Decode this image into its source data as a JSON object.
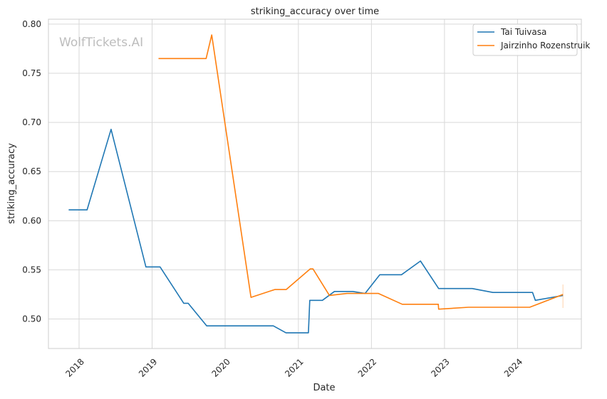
{
  "chart_data": {
    "type": "line",
    "title": "striking_accuracy over time",
    "xlabel": "Date",
    "ylabel": "striking_accuracy",
    "xlim": [
      "2017-08-01",
      "2024-11-15"
    ],
    "ylim": [
      0.47,
      0.805
    ],
    "x_ticks": [
      "2018",
      "2019",
      "2020",
      "2021",
      "2022",
      "2023",
      "2024"
    ],
    "y_ticks": [
      "0.50",
      "0.55",
      "0.60",
      "0.65",
      "0.70",
      "0.75",
      "0.80"
    ],
    "grid": true,
    "legend_position": "top-right",
    "watermark": "WolfTickets.AI",
    "series": [
      {
        "name": "Tai Tuivasa",
        "color": "#1f77b4",
        "points": [
          [
            "2017-11-10",
            0.611
          ],
          [
            "2018-02-10",
            0.611
          ],
          [
            "2018-06-10",
            0.693
          ],
          [
            "2018-12-01",
            0.553
          ],
          [
            "2019-02-10",
            0.553
          ],
          [
            "2019-06-08",
            0.516
          ],
          [
            "2019-06-30",
            0.516
          ],
          [
            "2019-10-01",
            0.493
          ],
          [
            "2020-08-29",
            0.493
          ],
          [
            "2020-10-31",
            0.486
          ],
          [
            "2021-02-20",
            0.486
          ],
          [
            "2021-02-27",
            0.519
          ],
          [
            "2021-05-01",
            0.519
          ],
          [
            "2021-06-30",
            0.528
          ],
          [
            "2021-09-30",
            0.528
          ],
          [
            "2021-11-30",
            0.526
          ],
          [
            "2022-02-12",
            0.545
          ],
          [
            "2022-05-31",
            0.545
          ],
          [
            "2022-09-03",
            0.559
          ],
          [
            "2022-12-03",
            0.531
          ],
          [
            "2023-05-20",
            0.531
          ],
          [
            "2023-08-31",
            0.527
          ],
          [
            "2024-03-16",
            0.527
          ],
          [
            "2024-03-30",
            0.519
          ],
          [
            "2024-08-15",
            0.524
          ]
        ]
      },
      {
        "name": "Jairzinho Rozenstruik",
        "color": "#ff7f0e",
        "points": [
          [
            "2019-02-02",
            0.765
          ],
          [
            "2019-09-28",
            0.765
          ],
          [
            "2019-10-26",
            0.789
          ],
          [
            "2020-05-09",
            0.522
          ],
          [
            "2020-09-05",
            0.53
          ],
          [
            "2020-11-01",
            0.53
          ],
          [
            "2021-03-01",
            0.551
          ],
          [
            "2021-03-15",
            0.551
          ],
          [
            "2021-06-05",
            0.524
          ],
          [
            "2021-09-01",
            0.526
          ],
          [
            "2022-02-05",
            0.526
          ],
          [
            "2022-06-04",
            0.515
          ],
          [
            "2022-12-01",
            0.515
          ],
          [
            "2022-12-03",
            0.51
          ],
          [
            "2023-05-01",
            0.512
          ],
          [
            "2024-03-02",
            0.512
          ],
          [
            "2024-08-15",
            0.525
          ]
        ]
      }
    ]
  }
}
